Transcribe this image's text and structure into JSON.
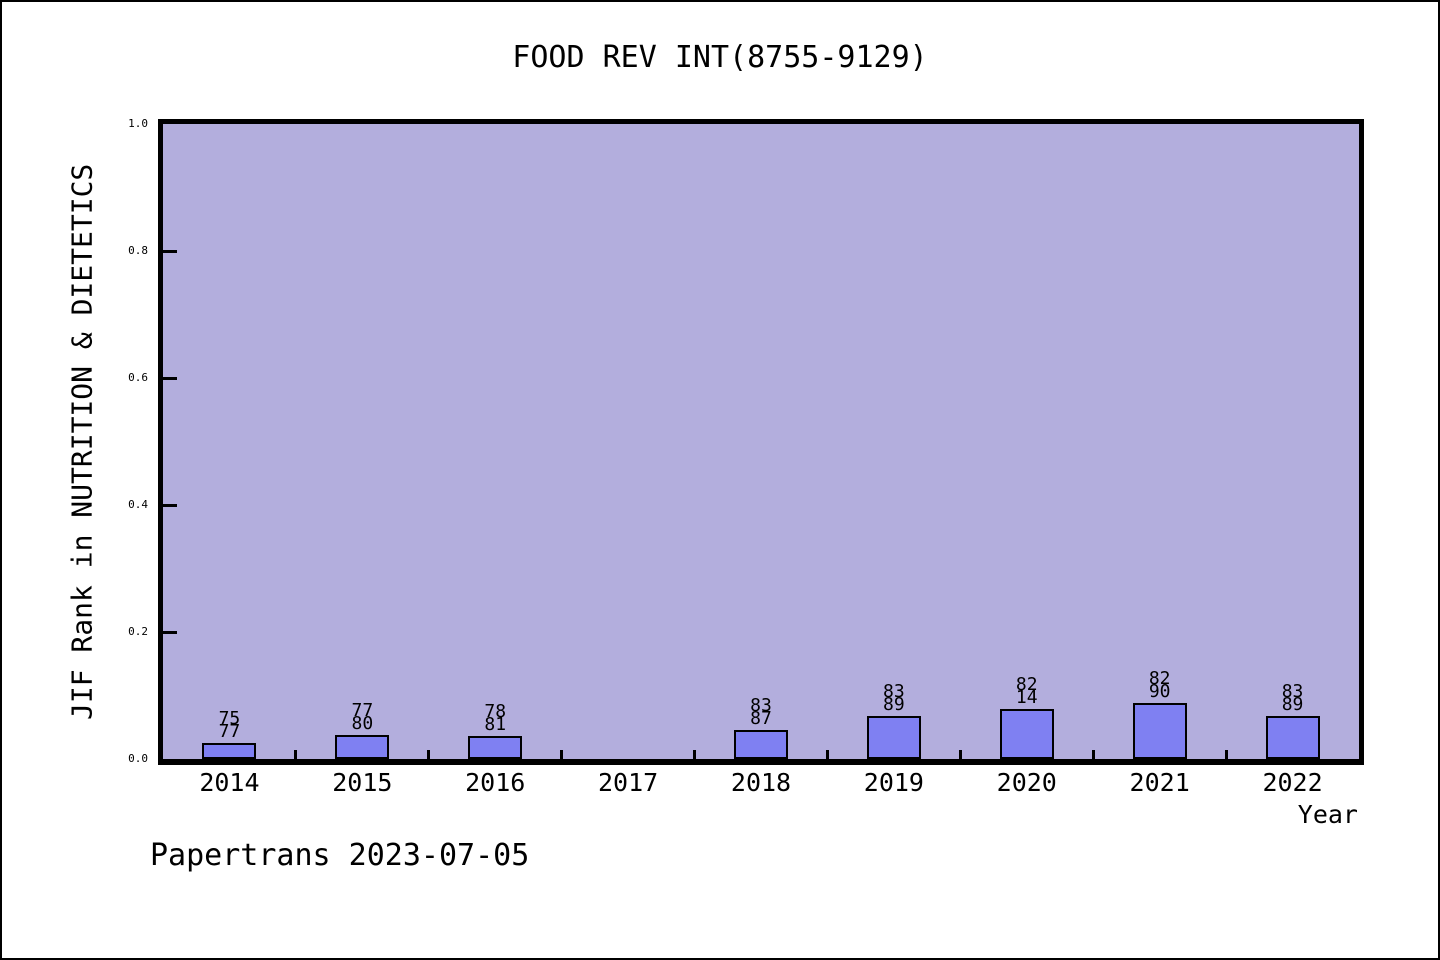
{
  "footer": {
    "text": "Papertrans 2023-07-05"
  },
  "colors": {
    "figure_bg": "#ffffff",
    "plot_bg": "#b3aedd",
    "bar_fill": "#7f80f2",
    "axis": "#000000",
    "text": "#000000"
  },
  "chart_data": {
    "type": "bar",
    "title": "FOOD REV INT(8755-9129)",
    "xlabel": "Year",
    "ylabel": "JIF Rank in NUTRITION & DIETETICS",
    "categories": [
      "2014",
      "2015",
      "2016",
      "2017",
      "2018",
      "2019",
      "2020",
      "2021",
      "2022"
    ],
    "values": [
      0.026,
      0.0375,
      0.037,
      null,
      0.046,
      0.067,
      0.079,
      0.089,
      0.067
    ],
    "bar_labels": [
      [
        "75",
        "77"
      ],
      [
        "77",
        "80"
      ],
      [
        "78",
        "81"
      ],
      null,
      [
        "83",
        "87"
      ],
      [
        "83",
        "89"
      ],
      [
        "82",
        "14"
      ],
      [
        "82",
        "90"
      ],
      [
        "83",
        "89"
      ]
    ],
    "ylim": [
      0.0,
      1.0
    ],
    "y_ticks": [
      "0.0",
      "0.2",
      "0.4",
      "0.6",
      "0.8",
      "1.0"
    ],
    "grid": false,
    "legend": null
  }
}
